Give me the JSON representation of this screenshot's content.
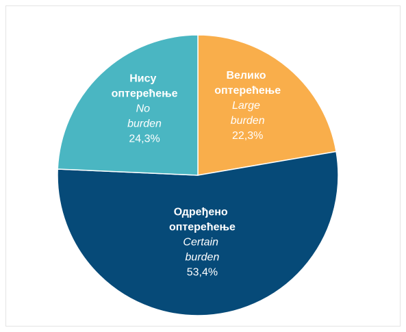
{
  "chart_data": {
    "type": "pie",
    "categories": [
      "Велико оптерећење",
      "Одређено оптерећење",
      "Нису оптерећење"
    ],
    "categories_en": [
      "Large burden",
      "Certain burden",
      "No burden"
    ],
    "values": [
      22.3,
      53.4,
      24.3
    ],
    "value_labels": [
      "22,3%",
      "53,4%",
      "24,3%"
    ],
    "colors": [
      "#F9AE4B",
      "#064A78",
      "#4AB6C2"
    ]
  }
}
